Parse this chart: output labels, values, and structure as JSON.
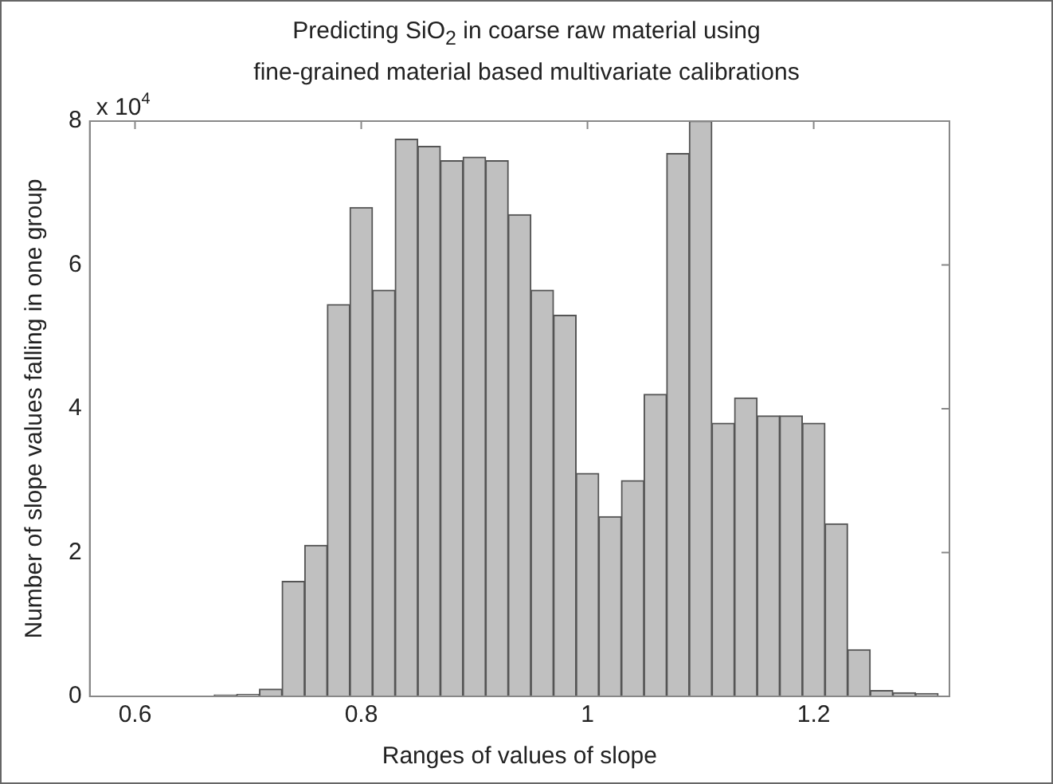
{
  "chart_data": {
    "type": "histogram",
    "title": "Predicting SiO$_{2}$ in coarse raw material using",
    "subtitle": "fine-grained material based multivariate calibrations",
    "xlabel": "Ranges of values of slope",
    "ylabel": "Number of slope values falling in one group",
    "annotations": [
      "x 10$^{4}$"
    ],
    "bins": [
      0.67,
      0.69,
      0.71,
      0.73,
      0.75,
      0.77,
      0.79,
      0.81,
      0.83,
      0.85,
      0.87,
      0.89,
      0.91,
      0.93,
      0.95,
      0.97,
      0.99,
      1.01,
      1.03,
      1.05,
      1.07,
      1.09,
      1.11,
      1.13,
      1.15,
      1.17,
      1.19,
      1.21,
      1.23,
      1.25,
      1.27,
      1.29,
      1.31
    ],
    "values": [
      0.02,
      0.03,
      0.1,
      1.6,
      2.1,
      5.45,
      6.8,
      5.65,
      7.75,
      7.65,
      7.45,
      7.5,
      7.45,
      6.7,
      5.65,
      5.3,
      3.1,
      2.5,
      3.0,
      4.2,
      7.55,
      8.0,
      3.8,
      4.15,
      3.9,
      3.9,
      3.8,
      2.4,
      0.65,
      0.08,
      0.05,
      0.04
    ],
    "color": "#c0c0c0",
    "xlim": [
      0.56,
      1.32
    ],
    "xticks": [
      0.6,
      0.8,
      1,
      1.2
    ],
    "ylim": [
      0,
      8
    ],
    "yticks": [
      0,
      2,
      4,
      6,
      8
    ],
    "grid": false,
    "legend": false
  }
}
